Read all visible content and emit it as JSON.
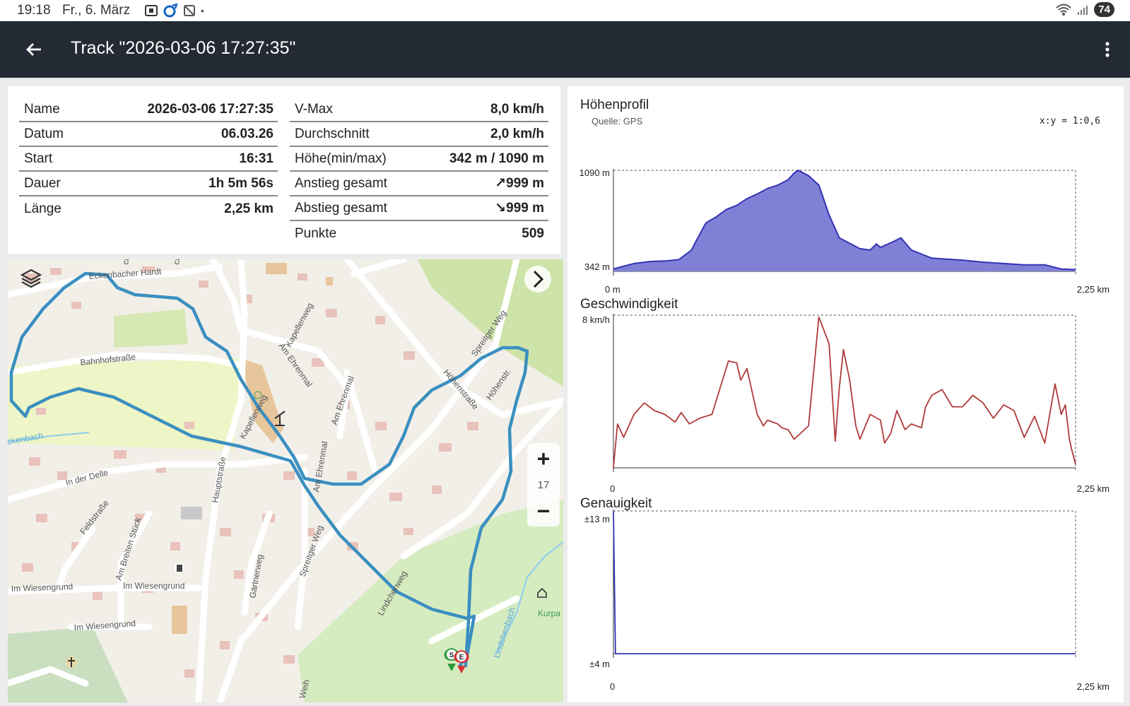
{
  "status_bar": {
    "time": "19:18",
    "date": "Fr., 6. März",
    "battery": "74"
  },
  "app_bar": {
    "title": "Track \"2026-03-06 17:27:35\""
  },
  "info": {
    "left": [
      {
        "label": "Name",
        "value": "2026-03-06 17:27:35"
      },
      {
        "label": "Datum",
        "value": "06.03.26"
      },
      {
        "label": "Start",
        "value": "16:31"
      },
      {
        "label": "Dauer",
        "value": "1h 5m 56s"
      },
      {
        "label": "Länge",
        "value": "2,25 km"
      }
    ],
    "right": [
      {
        "label": "V-Max",
        "value": "8,0 km/h"
      },
      {
        "label": "Durchschnitt",
        "value": "2,0 km/h"
      },
      {
        "label": "Höhe(min/max)",
        "value": "342 m / 1090 m"
      },
      {
        "label": "Anstieg gesamt",
        "value": "↗999 m"
      },
      {
        "label": "Abstieg gesamt",
        "value": "↘999 m"
      },
      {
        "label": "Punkte",
        "value": "509"
      }
    ]
  },
  "map": {
    "zoom_level": "17",
    "labels": {
      "eckenbacher": "Eckenbacher Hardt",
      "bahnhof": "Bahnhofstraße",
      "kapellenweg": "Kapellenweg",
      "kapellenweg2": "Kapellenweg",
      "am_ehrenmal": "Am Ehrenmal",
      "am_ehrenmal2": "Am Ehrenmal",
      "am_ehrenmal3": "Am Ehrenmal",
      "spreitger": "Spreitger Weg",
      "spreitger2": "Spreitger Weg",
      "hoehenstrasse": "Höhenstraße",
      "hoehenstr": "Höhenstr.",
      "hauptstrasse": "Hauptstraße",
      "in_der_delle": "In der Delle",
      "feldstrasse": "Feldstraße",
      "am_breiten": "Am Breiten Stück",
      "wiesengrund1": "Im Wiesengrund",
      "wiesengrund2": "Im Wiesengrund",
      "wiesengrund3": "Im Wiesengrund",
      "gaertnerweg": "Gärtnerweg",
      "lindchenweg": "Lindchenweg",
      "lindchenbach": "Lindchenbach",
      "eckenbach": "ckenbach",
      "kurpark": "Kurpa",
      "ch1": "ch",
      "ch2": "ch",
      "weih": "Weih",
      "start_marker": "S",
      "end_marker": "E"
    },
    "route_color": "#3a8fc0"
  },
  "charts": {
    "ratio": "x:y = 1:0,6",
    "elevation": {
      "title": "Höhenprofil",
      "source": "Quelle: GPS",
      "y_max_label": "1090 m",
      "y_min_label": "342 m",
      "x_min_label": "0 m",
      "x_max_label": "2,25 km"
    },
    "speed": {
      "title": "Geschwindigkeit",
      "y_max_label": "8 km/h",
      "x_min_label": "0",
      "x_max_label": "2,25 km"
    },
    "accuracy": {
      "title": "Genauigkeit",
      "y_max_label": "±13 m",
      "y_min_label": "±4 m",
      "x_min_label": "0",
      "x_max_label": "2,25 km"
    }
  },
  "chart_data": [
    {
      "type": "area",
      "title": "Höhenprofil",
      "xlabel": "",
      "ylabel": "",
      "xlim": [
        0,
        2.25
      ],
      "ylim": [
        342,
        1090
      ],
      "x_unit": "km",
      "y_unit": "m",
      "color": "#8080d6",
      "line_color": "#3232b4",
      "x": [
        0,
        0.05,
        0.1,
        0.18,
        0.26,
        0.32,
        0.38,
        0.4,
        0.45,
        0.5,
        0.55,
        0.6,
        0.65,
        0.7,
        0.75,
        0.8,
        0.85,
        0.88,
        0.9,
        0.95,
        1.0,
        1.05,
        1.1,
        1.15,
        1.2,
        1.25,
        1.28,
        1.3,
        1.36,
        1.4,
        1.45,
        1.5,
        1.55,
        1.6,
        1.7,
        1.8,
        1.9,
        2.0,
        2.1,
        2.18,
        2.25
      ],
      "y": [
        360,
        380,
        400,
        415,
        420,
        430,
        500,
        560,
        700,
        745,
        800,
        830,
        880,
        915,
        955,
        980,
        1020,
        1070,
        1090,
        1050,
        980,
        760,
        590,
        550,
        510,
        500,
        545,
        520,
        560,
        590,
        500,
        470,
        440,
        435,
        425,
        410,
        400,
        390,
        390,
        360,
        355
      ]
    },
    {
      "type": "line",
      "title": "Geschwindigkeit",
      "xlabel": "",
      "ylabel": "",
      "xlim": [
        0,
        2.25
      ],
      "ylim": [
        0,
        8
      ],
      "x_unit": "km",
      "y_unit": "km/h",
      "color": "#b03a3a",
      "x": [
        0,
        0.02,
        0.05,
        0.1,
        0.15,
        0.2,
        0.25,
        0.3,
        0.33,
        0.37,
        0.42,
        0.48,
        0.52,
        0.56,
        0.6,
        0.62,
        0.65,
        0.7,
        0.73,
        0.75,
        0.8,
        0.82,
        0.85,
        0.88,
        0.95,
        1.0,
        1.05,
        1.08,
        1.1,
        1.12,
        1.15,
        1.18,
        1.2,
        1.25,
        1.3,
        1.32,
        1.35,
        1.38,
        1.42,
        1.45,
        1.5,
        1.52,
        1.55,
        1.6,
        1.65,
        1.7,
        1.75,
        1.8,
        1.85,
        1.9,
        1.95,
        2.0,
        2.05,
        2.1,
        2.15,
        2.18,
        2.2,
        2.22,
        2.23,
        2.25
      ],
      "y": [
        0,
        2.3,
        1.6,
        2.8,
        3.4,
        3.0,
        2.8,
        2.4,
        2.9,
        2.3,
        2.6,
        2.8,
        4.2,
        5.6,
        5.5,
        4.6,
        5.2,
        2.8,
        2.2,
        2.5,
        2.3,
        2.1,
        2.0,
        1.5,
        2.2,
        7.9,
        6.5,
        1.4,
        4.2,
        6.2,
        4.6,
        2.2,
        1.5,
        2.8,
        2.5,
        1.3,
        1.8,
        3.0,
        2.0,
        2.3,
        2.1,
        3.2,
        3.8,
        4.1,
        3.2,
        3.2,
        3.8,
        3.4,
        2.6,
        3.3,
        3.0,
        1.6,
        2.7,
        1.3,
        4.4,
        2.8,
        3.3,
        1.5,
        1.0,
        0.2
      ]
    },
    {
      "type": "line",
      "title": "Genauigkeit",
      "xlabel": "",
      "ylabel": "",
      "xlim": [
        0,
        2.25
      ],
      "ylim": [
        4,
        13
      ],
      "x_unit": "km",
      "y_unit": "m",
      "color": "#3232b4",
      "x": [
        0,
        0.01,
        0.02,
        2.25
      ],
      "y": [
        13,
        4,
        4,
        4
      ]
    }
  ]
}
